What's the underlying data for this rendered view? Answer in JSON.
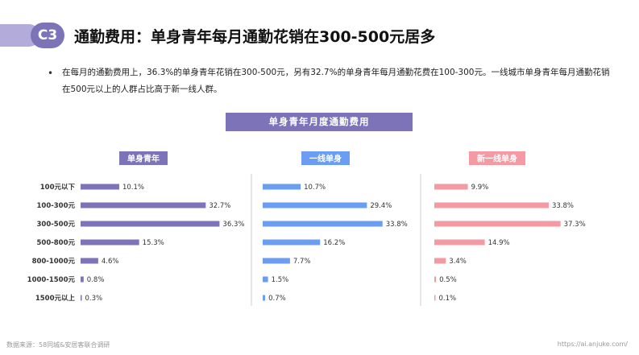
{
  "header": {
    "badge": "C3",
    "title": "通勤费用：单身青年每月通勤花销在300-500元居多"
  },
  "summary": {
    "bullet": "•",
    "text": "在每月的通勤费用上，36.3%的单身青年花销在300-500元，另有32.7%的单身青年每月通勤花费在100-300元。一线城市单身青年每月通勤花销在500元以上的人群占比高于新一线人群。"
  },
  "chart_title": "单身青年月度通勤费用",
  "colors": {
    "accent": "#7d73b8",
    "single_youth": "#7d73b8",
    "tier1": "#6b9ef2",
    "new_tier1": "#f39aa3"
  },
  "chart_data": [
    {
      "type": "bar",
      "orientation": "horizontal",
      "title": "单身青年",
      "categories": [
        "100元以下",
        "100-300元",
        "300-500元",
        "500-800元",
        "800-1000元",
        "1000-1500元",
        "1500元以上"
      ],
      "values": [
        10.1,
        32.7,
        36.3,
        15.3,
        4.6,
        0.8,
        0.3
      ],
      "labels": [
        "10.1%",
        "32.7%",
        "36.3%",
        "15.3%",
        "4.6%",
        "0.8%",
        "0.3%"
      ]
    },
    {
      "type": "bar",
      "orientation": "horizontal",
      "title": "一线单身",
      "categories": [
        "100元以下",
        "100-300元",
        "300-500元",
        "500-800元",
        "800-1000元",
        "1000-1500元",
        "1500元以上"
      ],
      "values": [
        10.7,
        29.4,
        33.8,
        16.2,
        7.7,
        1.5,
        0.7
      ],
      "labels": [
        "10.7%",
        "29.4%",
        "33.8%",
        "16.2%",
        "7.7%",
        "1.5%",
        "0.7%"
      ]
    },
    {
      "type": "bar",
      "orientation": "horizontal",
      "title": "新一线单身",
      "categories": [
        "100元以下",
        "100-300元",
        "300-500元",
        "500-800元",
        "800-1000元",
        "1000-1500元",
        "1500元以上"
      ],
      "values": [
        9.9,
        33.8,
        37.3,
        14.9,
        3.4,
        0.5,
        0.1
      ],
      "labels": [
        "9.9%",
        "33.8%",
        "37.3%",
        "14.9%",
        "3.4%",
        "0.5%",
        "0.1%"
      ]
    }
  ],
  "footer": {
    "source": "数据来源：58同城&安居客联合调研",
    "url": "https://ai.anjuke.com/"
  }
}
